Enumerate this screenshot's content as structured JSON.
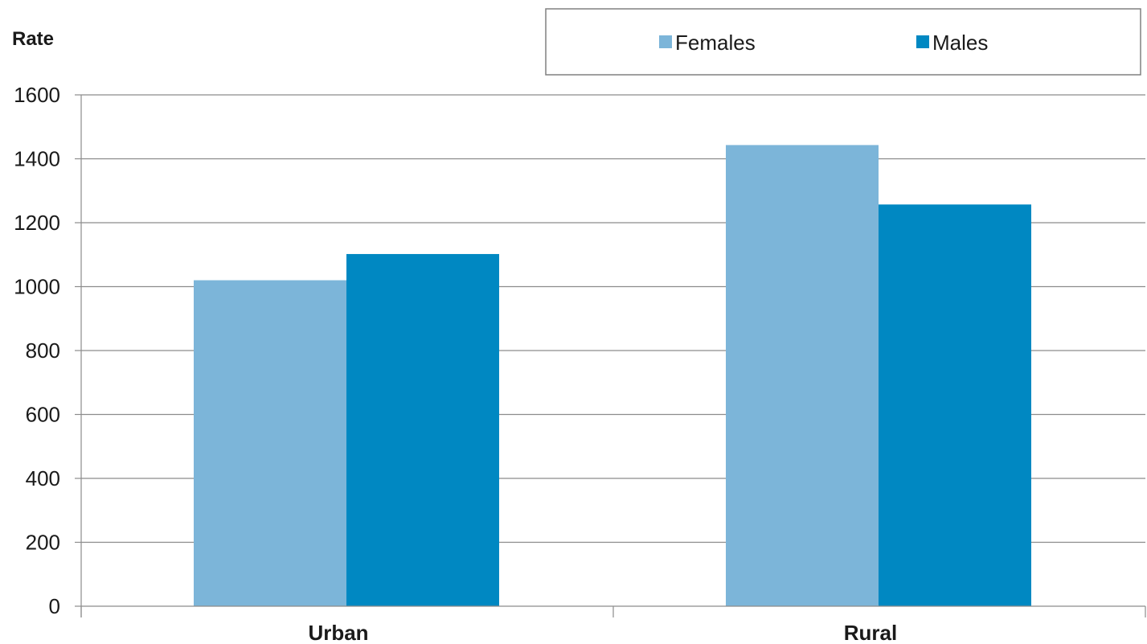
{
  "chart_data": {
    "type": "bar",
    "title": "",
    "xlabel": "",
    "ylabel": "Rate",
    "categories": [
      "Urban",
      "Rural"
    ],
    "series": [
      {
        "name": "Females",
        "color": "#7cb5d9",
        "values": [
          1020,
          1443
        ]
      },
      {
        "name": "Males",
        "color": "#0088c2",
        "values": [
          1102,
          1257
        ]
      }
    ],
    "ylim": [
      0,
      1600
    ],
    "yticks": [
      0,
      200,
      400,
      600,
      800,
      1000,
      1200,
      1400,
      1600
    ],
    "grid": true,
    "legend_position": "top-right"
  }
}
